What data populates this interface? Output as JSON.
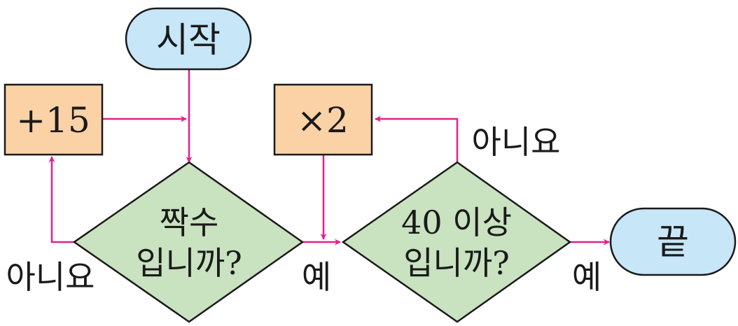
{
  "flowchart": {
    "start_label": "시작",
    "add_label": "+15",
    "multiply_label": "×2",
    "even_question": [
      "짝수",
      "입니까?"
    ],
    "threshold_question": [
      "40 이상",
      "입니까?"
    ],
    "end_label": "끝",
    "even_no_label": "아니요",
    "even_yes_label": "예",
    "threshold_no_label": "아니요",
    "threshold_yes_label": "예"
  },
  "colors": {
    "terminal_fill": "#c7e6f8",
    "process_fill": "#fbd2a6",
    "decision_fill": "#c9e2c0",
    "arrow": "#e0208c",
    "stroke": "#1a1a1a"
  }
}
